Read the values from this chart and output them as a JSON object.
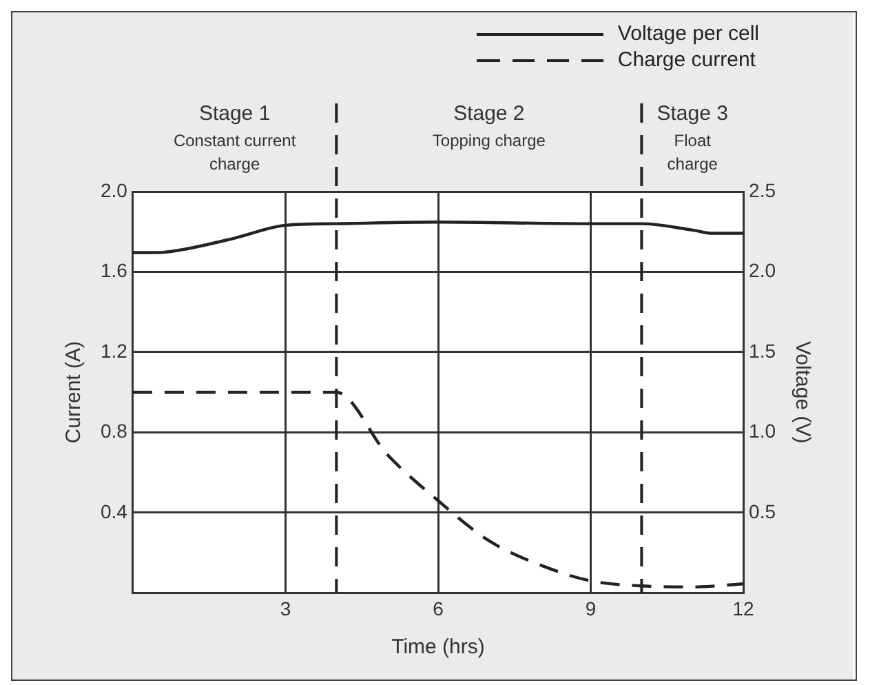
{
  "chart_data": {
    "type": "line",
    "xlabel": "Time (hrs)",
    "ylabel": "Current (A)",
    "y2label": "Voltage (V)",
    "series": [
      {
        "name": "Voltage per cell",
        "color": "#222222",
        "axis": "y2",
        "line_style": "solid",
        "x": [
          0,
          0.5,
          1,
          2,
          3,
          4,
          6,
          9,
          10,
          11,
          11.4,
          12
        ],
        "values": [
          2.12,
          2.12,
          2.14,
          2.21,
          2.29,
          2.3,
          2.31,
          2.3,
          2.3,
          2.26,
          2.24,
          2.24
        ]
      },
      {
        "name": "Charge current",
        "color": "#222222",
        "line_style": "dashed",
        "x": [
          0,
          4,
          5,
          6,
          7,
          8,
          9,
          10,
          11,
          12
        ],
        "values": [
          1.0,
          1.0,
          0.69,
          0.46,
          0.26,
          0.14,
          0.06,
          0.035,
          0.03,
          0.045
        ]
      }
    ],
    "xlim": [
      0,
      12
    ],
    "xticks": [
      3,
      6,
      9,
      12
    ],
    "ylim": [
      0,
      2
    ],
    "yticks": [
      0.4,
      0.8,
      1.2,
      1.6,
      {
        "value": 2,
        "label": "2.0"
      }
    ],
    "y2lim": [
      0,
      2.5
    ],
    "y2ticks": [
      0.5,
      {
        "value": 1,
        "label": "1.0"
      },
      1.5,
      {
        "value": 2,
        "label": "2.0"
      },
      2.5
    ],
    "ref_lines": [
      {
        "axis": "x",
        "value": 4,
        "line_style": "dashed"
      },
      {
        "axis": "x",
        "value": 10,
        "line_style": "dashed"
      }
    ],
    "annotations": [
      "Stage 1\nConstant current\ncharge",
      "Stage 2\nTopping charge",
      "Stage 3\nFloat\ncharge"
    ],
    "grid": true,
    "legend": "top right",
    "marker": "none"
  }
}
